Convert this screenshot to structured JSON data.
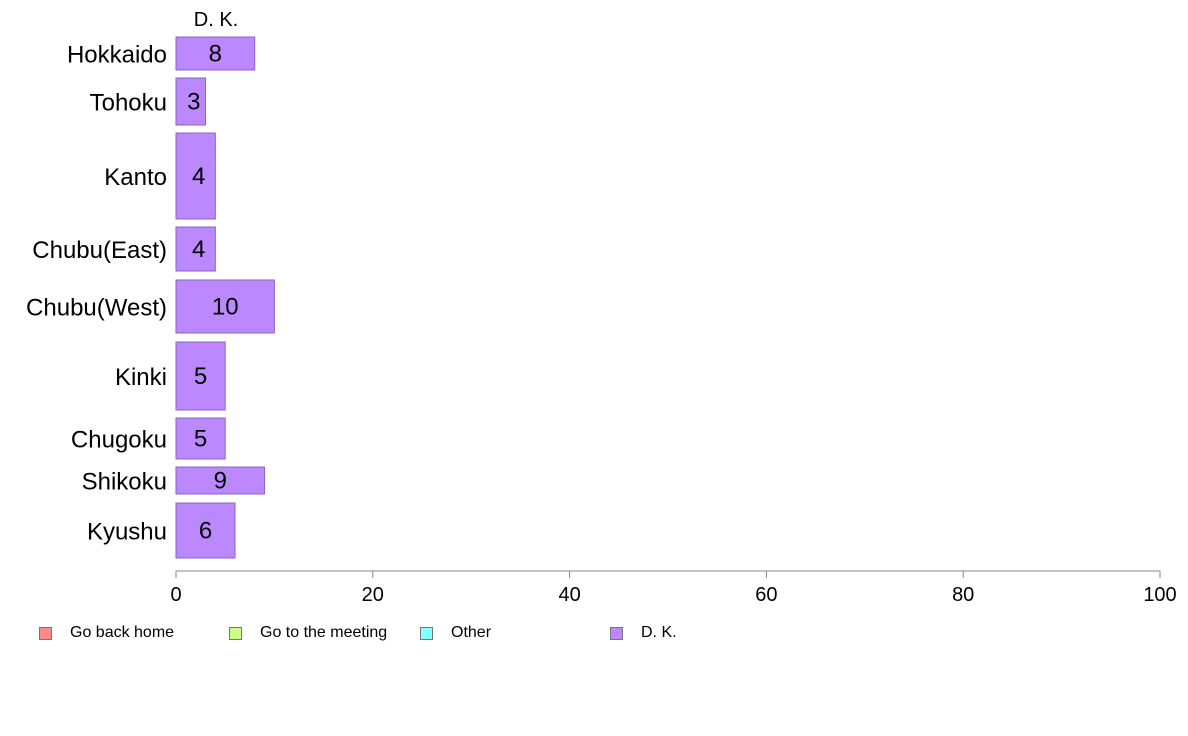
{
  "chart_data": {
    "type": "bar",
    "orientation": "horizontal",
    "column_header": "D. K.",
    "categories": [
      "Hokkaido",
      "Tohoku",
      "Kanto",
      "Chubu(East)",
      "Chubu(West)",
      "Kinki",
      "Chugoku",
      "Shikoku",
      "Kyushu"
    ],
    "series": [
      {
        "name": "D. K.",
        "color": "#bb88ff",
        "values": [
          8,
          3,
          4,
          4,
          10,
          5,
          5,
          9,
          6
        ],
        "labels": [
          "8",
          "3",
          "4",
          "4",
          "10",
          "5",
          "5",
          "9",
          "6"
        ]
      }
    ],
    "xlim": [
      0,
      100
    ],
    "xticks": [
      "0",
      "20",
      "40",
      "60",
      "80",
      "100"
    ],
    "grid": false,
    "legend_position": "bottom-left"
  },
  "legend": {
    "items": [
      {
        "label": "Go back home",
        "color": "#ff8888"
      },
      {
        "label": "Go to the meeting",
        "color": "#ccff88"
      },
      {
        "label": "Other",
        "color": "#88ffff"
      },
      {
        "label": "D. K.",
        "color": "#bb88ff"
      }
    ]
  }
}
